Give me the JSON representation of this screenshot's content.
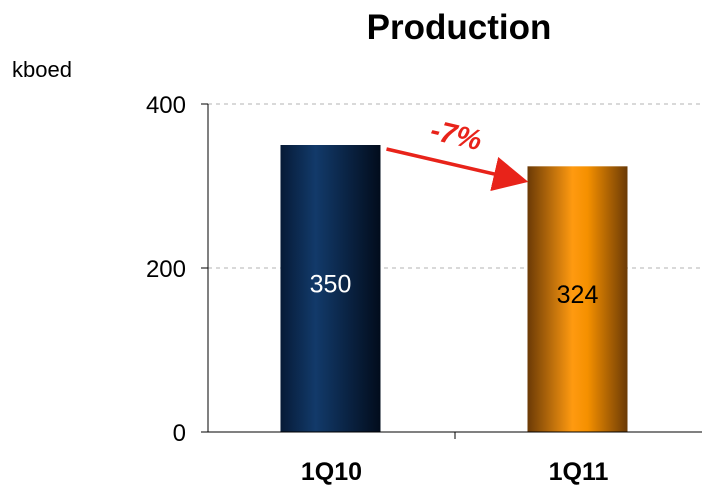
{
  "chart_data": {
    "type": "bar",
    "title": "Production",
    "ylabel": "kboed",
    "xlabel": "",
    "categories": [
      "1Q10",
      "1Q11"
    ],
    "values": [
      350,
      324
    ],
    "data_labels": [
      "350",
      "324"
    ],
    "ylim": [
      0,
      400
    ],
    "yticks": [
      0,
      200,
      400
    ],
    "ytick_labels": [
      "0",
      "200",
      "400"
    ],
    "grid": true,
    "legend": "none",
    "colors": {
      "bar_1q10": "#0b2a52",
      "bar_1q11": "#f08a00",
      "label_1q10": "#ffffff",
      "label_1q11": "#000000",
      "annotation": "#e8231a"
    },
    "annotation": {
      "text": "-7%",
      "from": "1Q10",
      "to": "1Q11"
    }
  }
}
